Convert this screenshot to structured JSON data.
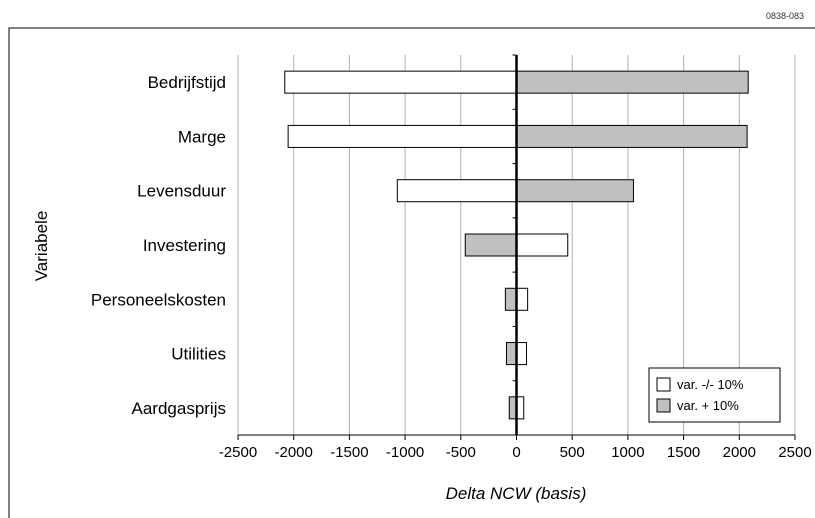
{
  "corner_label": "0838-083",
  "colors": {
    "bar_minus": "#ffffff",
    "bar_plus": "#c0c0c0",
    "stroke": "#000000",
    "grid": "#b0b0b0"
  },
  "chart_data": {
    "type": "bar",
    "orientation": "horizontal",
    "title": "",
    "xlabel": "Delta NCW (basis)",
    "ylabel": "Variabele",
    "xlim": [
      -2500,
      2500
    ],
    "xticks": [
      -2500,
      -2000,
      -1500,
      -1000,
      -500,
      0,
      500,
      1000,
      1500,
      2000,
      2500
    ],
    "xtick_labels": [
      "-2500",
      "-2000",
      "-1500",
      "-1000",
      "-500",
      "0",
      "500",
      "1000",
      "1500",
      "2000",
      "2500"
    ],
    "grid": "vertical",
    "legend_position": "bottom-right",
    "categories": [
      "Bedrijfstijd",
      "Marge",
      "Levensduur",
      "Investering",
      "Personeelskosten",
      "Utilities",
      "Aardgasprijs"
    ],
    "series": [
      {
        "name": "var. -/- 10%",
        "color": "#ffffff",
        "values": [
          -2080,
          -2050,
          -1070,
          460,
          100,
          90,
          65
        ]
      },
      {
        "name": "var. + 10%",
        "color": "#c0c0c0",
        "values": [
          2080,
          2070,
          1050,
          -460,
          -100,
          -90,
          -65
        ]
      }
    ]
  }
}
